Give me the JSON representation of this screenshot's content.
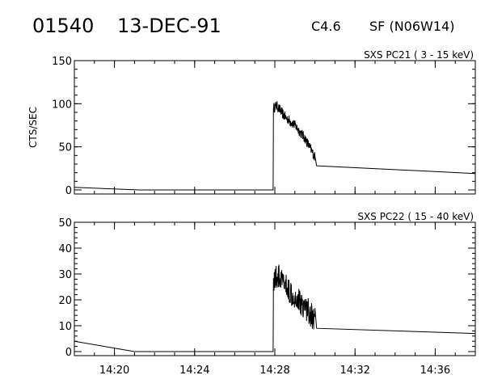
{
  "header": {
    "event_id": "01540",
    "date": "13-DEC-91",
    "goes_class": "C4.6",
    "optical_class": "SF (N06W14)"
  },
  "chart_data": [
    {
      "type": "line",
      "title": "SXS PC21  (  3 - 15 keV)",
      "ylabel": "CTS/SEC",
      "xlabel": "",
      "x_unit": "time (UT, HH:MM)",
      "xlim": [
        "14:18",
        "14:38"
      ],
      "ylim": [
        0,
        150
      ],
      "yticks": [
        0,
        50,
        100,
        150
      ],
      "xticks": [
        "14:20",
        "14:24",
        "14:28",
        "14:32",
        "14:36"
      ],
      "grid": false,
      "noise_amplitude": 6,
      "series": [
        {
          "x": [
            "14:18:00",
            "14:21:15",
            "14:27:55",
            "14:27:56",
            "14:28:05",
            "14:28:30",
            "14:29:00",
            "14:29:30",
            "14:30:00",
            "14:30:05",
            "14:38:00"
          ],
          "y": [
            3,
            0,
            0,
            95,
            98,
            85,
            75,
            60,
            38,
            28,
            19
          ]
        }
      ]
    },
    {
      "type": "line",
      "title": "SXS PC22  ( 15 - 40 keV)",
      "ylabel": "",
      "xlabel": "",
      "x_unit": "time (UT, HH:MM)",
      "xlim": [
        "14:18",
        "14:38"
      ],
      "ylim": [
        0,
        50
      ],
      "yticks": [
        0,
        10,
        20,
        30,
        40,
        50
      ],
      "xticks": [
        "14:20",
        "14:24",
        "14:28",
        "14:32",
        "14:36"
      ],
      "grid": false,
      "noise_amplitude": 5,
      "series": [
        {
          "x": [
            "14:18:00",
            "14:21:00",
            "14:27:55",
            "14:27:56",
            "14:28:10",
            "14:28:40",
            "14:29:10",
            "14:29:40",
            "14:30:00",
            "14:30:05",
            "14:38:00"
          ],
          "y": [
            4,
            0,
            0,
            28,
            29,
            24,
            20,
            16,
            12,
            9,
            7
          ]
        }
      ]
    }
  ]
}
